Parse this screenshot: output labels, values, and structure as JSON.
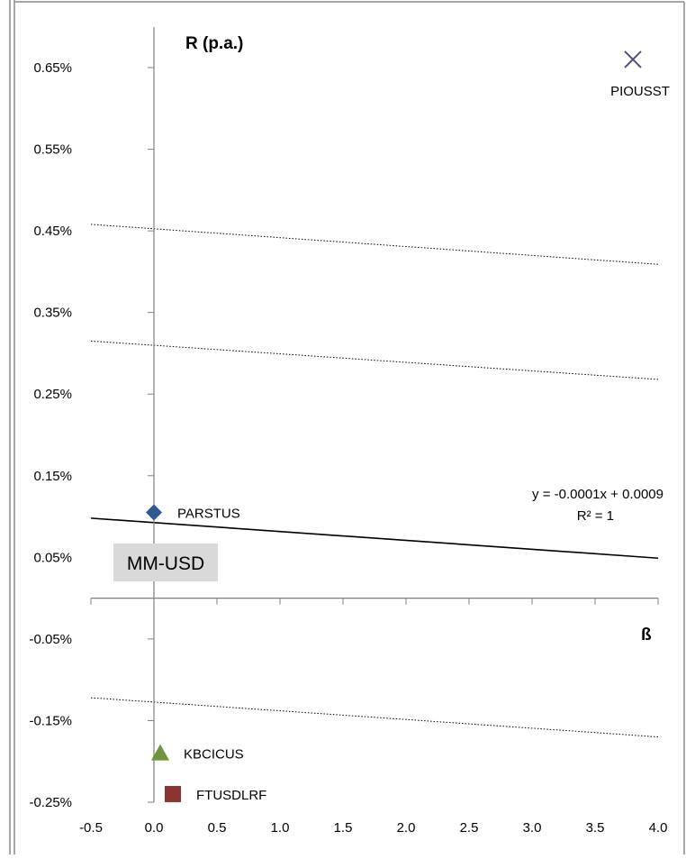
{
  "chart_data": {
    "type": "scatter",
    "title": "",
    "xlabel": "ß",
    "ylabel": "R (p.a.)",
    "xlim": [
      -0.5,
      4.0
    ],
    "ylim": [
      -0.0025,
      0.007
    ],
    "x_ticks": [
      "-0.5",
      "0.0",
      "0.5",
      "1.0",
      "1.5",
      "2.0",
      "2.5",
      "3.0",
      "3.5",
      "4.0"
    ],
    "y_ticks": [
      "-0.25%",
      "-0.15%",
      "-0.05%",
      "0.05%",
      "0.15%",
      "0.25%",
      "0.35%",
      "0.45%",
      "0.55%",
      "0.65%"
    ],
    "points": [
      {
        "label": "PIOUSST",
        "x": 3.8,
        "y": 0.0066,
        "marker": "x",
        "color": "#5b4a7e"
      },
      {
        "label": "PARSTUS",
        "x": 0.0,
        "y": 0.00105,
        "marker": "diamond",
        "color": "#2f5a8f"
      },
      {
        "label": "KBCICUS",
        "x": 0.05,
        "y": -0.0019,
        "marker": "triangle",
        "color": "#70933d"
      },
      {
        "label": "FTUSDLRF",
        "x": 0.15,
        "y": -0.0024,
        "marker": "square",
        "color": "#8b3533"
      }
    ],
    "lines": [
      {
        "style": "solid",
        "from": [
          -0.5,
          0.00098
        ],
        "to": [
          4.0,
          0.00049
        ]
      },
      {
        "style": "dotted",
        "from": [
          -0.5,
          0.00458
        ],
        "to": [
          4.0,
          0.00409
        ]
      },
      {
        "style": "dotted",
        "from": [
          -0.5,
          0.00315
        ],
        "to": [
          4.0,
          0.00268
        ]
      },
      {
        "style": "dotted",
        "from": [
          -0.5,
          -0.00122
        ],
        "to": [
          4.0,
          -0.0017
        ]
      }
    ],
    "trendline_equation": "y = -0.0001x + 0.0009",
    "trendline_r2": "R² = 1",
    "annotation_box": "MM-USD",
    "grid": false
  }
}
